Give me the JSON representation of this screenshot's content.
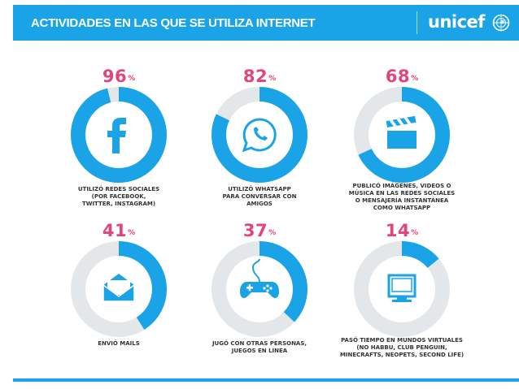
{
  "header": {
    "title": "ACTIVIDADES EN LAS QUE SE UTILIZA INTERNET",
    "logo_text": "unicef"
  },
  "colors": {
    "accent": "#1aa3e6",
    "track": "#e4e7ea",
    "percent": "#e0457b"
  },
  "activities": [
    {
      "percent": "96",
      "symbol": "%",
      "value": 0.96,
      "icon": "facebook-icon",
      "caption": "UTILIZÓ REDES SOCIALES\n(POR FACEBOOK,\nTWITTER, INSTAGRAM)"
    },
    {
      "percent": "82",
      "symbol": "%",
      "value": 0.82,
      "icon": "whatsapp-icon",
      "caption": "UTILIZÓ WHATSAPP\nPARA CONVERSAR CON\nAMIGOS"
    },
    {
      "percent": "68",
      "symbol": "%",
      "value": 0.68,
      "icon": "clapperboard-icon",
      "caption": "PUBLICÓ IMÁGENES, VIDEOS O\nMÚSICA EN LAS REDES SOCIALES\nO MENSAJERÍA INSTANTÁNEA\nCOMO WHATSAPP"
    },
    {
      "percent": "41",
      "symbol": "%",
      "value": 0.41,
      "icon": "envelope-icon",
      "caption": "ENVIÓ MAILS"
    },
    {
      "percent": "37",
      "symbol": "%",
      "value": 0.37,
      "icon": "gamepad-icon",
      "caption": "JUGÓ CON OTRAS PERSONAS,\nJUEGOS EN LÍNEA"
    },
    {
      "percent": "14",
      "symbol": "%",
      "value": 0.14,
      "icon": "computer-monitor-icon",
      "caption": "PASÓ TIEMPO EN MUNDOS VIRTUALES\n(NO HABBU, CLUB PENGUIN,\nMINECRAFTS, NEOPETS, SECOND LIFE)"
    }
  ]
}
